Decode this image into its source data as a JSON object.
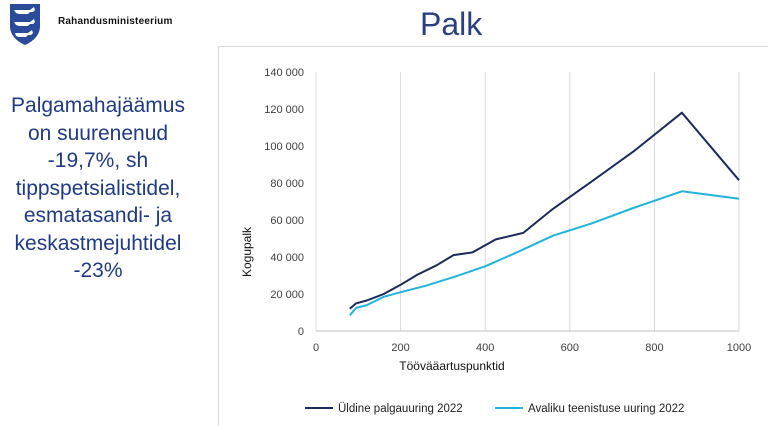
{
  "header": {
    "ministry": "Rahandusministeerium",
    "title": "Palk"
  },
  "side_text": [
    "Palgamahajäämus",
    "on suurenenud",
    "-19,7%, sh",
    "tippspetsialistidel,",
    "esmatasandi- ja",
    "keskastmejuhtidel",
    "-23%"
  ],
  "colors": {
    "title": "#2a3e82",
    "side_text": "#1f3a86",
    "series_1": "#1b2a5c",
    "series_2": "#20b4dc"
  },
  "chart_data": {
    "type": "line",
    "xlabel": "Töövääartuspunktid",
    "ylabel": "Kogupalk",
    "xlim": [
      0,
      1000
    ],
    "ylim": [
      0,
      140000
    ],
    "x_ticks": [
      0,
      200,
      400,
      600,
      800,
      1000
    ],
    "y_ticks": [
      0,
      20000,
      40000,
      60000,
      80000,
      100000,
      120000,
      140000
    ],
    "x_tick_labels": [
      "0",
      "200",
      "400",
      "600",
      "800",
      "1000"
    ],
    "y_tick_labels": [
      "0",
      "20 000",
      "40 000",
      "60 000",
      "80 000",
      "100 000",
      "120 000",
      "140 000"
    ],
    "grid": "vertical",
    "legend_position": "bottom",
    "series": [
      {
        "name": "Üldine palgauuring 2022",
        "color": "#1b2a5c",
        "points": [
          [
            80,
            12000
          ],
          [
            95,
            15000
          ],
          [
            120,
            16500
          ],
          [
            160,
            20000
          ],
          [
            200,
            25000
          ],
          [
            240,
            30500
          ],
          [
            285,
            35500
          ],
          [
            325,
            41000
          ],
          [
            370,
            42500
          ],
          [
            425,
            49500
          ],
          [
            490,
            53000
          ],
          [
            560,
            66000
          ],
          [
            650,
            80500
          ],
          [
            750,
            97000
          ],
          [
            865,
            118000
          ],
          [
            1000,
            81500
          ]
        ]
      },
      {
        "name": "Avaliku teenistuse uuring 2022",
        "color": "#20b4dc",
        "points": [
          [
            80,
            8500
          ],
          [
            95,
            12500
          ],
          [
            120,
            14000
          ],
          [
            160,
            18500
          ],
          [
            200,
            21000
          ],
          [
            260,
            24500
          ],
          [
            330,
            29500
          ],
          [
            400,
            35000
          ],
          [
            480,
            43000
          ],
          [
            560,
            51500
          ],
          [
            650,
            58000
          ],
          [
            750,
            66500
          ],
          [
            865,
            75500
          ],
          [
            1000,
            71500
          ]
        ]
      }
    ]
  }
}
